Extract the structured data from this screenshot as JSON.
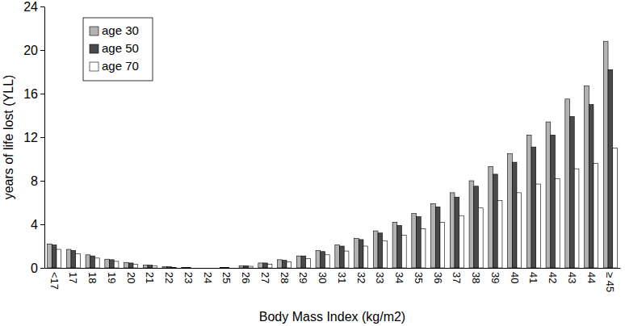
{
  "chart_data": {
    "type": "bar",
    "x_label": "Body Mass Index (kg/m2)",
    "y_label": "years of life lost (YLL)",
    "categories": [
      "<17",
      "17",
      "18",
      "19",
      "20",
      "21",
      "22",
      "23",
      "24",
      "25",
      "26",
      "27",
      "28",
      "29",
      "30",
      "31",
      "32",
      "33",
      "34",
      "35",
      "36",
      "37",
      "38",
      "39",
      "40",
      "41",
      "42",
      "43",
      "44",
      "≥ 45"
    ],
    "series": [
      {
        "name": "age 30",
        "color": "#b3b3b3",
        "values": [
          2.2,
          1.7,
          1.2,
          0.8,
          0.5,
          0.25,
          0.1,
          0.05,
          0,
          0.05,
          0.2,
          0.45,
          0.75,
          1.1,
          1.6,
          2.1,
          2.7,
          3.4,
          4.2,
          5.0,
          5.9,
          6.9,
          8.0,
          9.3,
          10.5,
          12.2,
          13.4,
          15.5,
          16.7,
          20.8
        ]
      },
      {
        "name": "age 50",
        "color": "#4a4a4a",
        "values": [
          2.1,
          1.6,
          1.1,
          0.75,
          0.45,
          0.25,
          0.1,
          0.05,
          0,
          0.05,
          0.2,
          0.45,
          0.7,
          1.1,
          1.5,
          2.0,
          2.6,
          3.2,
          3.9,
          4.7,
          5.6,
          6.5,
          7.5,
          8.6,
          9.7,
          11.1,
          12.2,
          13.9,
          15.0,
          18.2
        ]
      },
      {
        "name": "age 70",
        "color": "#ffffff",
        "values": [
          1.7,
          1.3,
          0.9,
          0.6,
          0.35,
          0.2,
          0.05,
          0,
          0,
          0,
          0.15,
          0.35,
          0.55,
          0.85,
          1.2,
          1.55,
          2.0,
          2.5,
          3.0,
          3.6,
          4.2,
          4.8,
          5.5,
          6.2,
          6.9,
          7.7,
          8.2,
          9.1,
          9.6,
          11.0
        ]
      }
    ],
    "ylim": [
      0,
      24
    ],
    "yticks": [
      0,
      4,
      8,
      12,
      16,
      20,
      24
    ],
    "grid": false,
    "legend": "upper left"
  }
}
